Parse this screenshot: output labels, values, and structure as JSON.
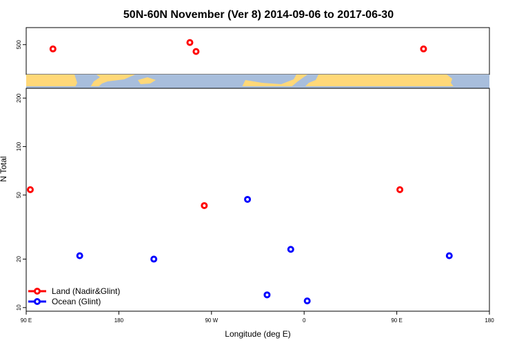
{
  "chart_data": {
    "type": "scatter",
    "title": "50N-60N November (Ver 8)   2014-09-06 to 2017-06-30",
    "xlabel": "Longitude (deg E)",
    "ylabel": "N Total",
    "x_ticks": [
      {
        "value": 90,
        "label": "90 E"
      },
      {
        "value": 180,
        "label": "180"
      },
      {
        "value": 270,
        "label": "90 W"
      },
      {
        "value": 360,
        "label": "0"
      },
      {
        "value": 450,
        "label": "90 E"
      },
      {
        "value": 540,
        "label": "180"
      }
    ],
    "xlim": [
      90,
      540
    ],
    "y_scale": "log",
    "ylim": [
      9.5,
      230
    ],
    "y_ticks": [
      10,
      20,
      50,
      100,
      200
    ],
    "top_panel": {
      "y_ticks": [
        500
      ],
      "points": [
        {
          "series": "Land (Nadir&Glint)",
          "x": 116,
          "y": 490
        },
        {
          "series": "Land (Nadir&Glint)",
          "x": 249,
          "y": 505
        },
        {
          "series": "Land (Nadir&Glint)",
          "x": 255,
          "y": 484
        },
        {
          "series": "Land (Nadir&Glint)",
          "x": 476,
          "y": 490
        }
      ]
    },
    "series": [
      {
        "name": "Land (Nadir&Glint)",
        "color": "#ff0000",
        "points": [
          {
            "x": 94,
            "y": 54
          },
          {
            "x": 263,
            "y": 43
          },
          {
            "x": 453,
            "y": 54
          }
        ]
      },
      {
        "name": "Ocean (Glint)",
        "color": "#0000ff",
        "points": [
          {
            "x": 142,
            "y": 21
          },
          {
            "x": 214,
            "y": 20
          },
          {
            "x": 305,
            "y": 47
          },
          {
            "x": 324,
            "y": 12
          },
          {
            "x": 347,
            "y": 23
          },
          {
            "x": 363,
            "y": 11
          },
          {
            "x": 501,
            "y": 21
          }
        ]
      }
    ],
    "legend": {
      "position": "bottom-left",
      "entries": [
        "Land (Nadir&Glint)",
        "Ocean (Glint)"
      ]
    },
    "map_strip": {
      "land_color": "#ffd878",
      "ocean_color": "#a8bedc"
    }
  }
}
